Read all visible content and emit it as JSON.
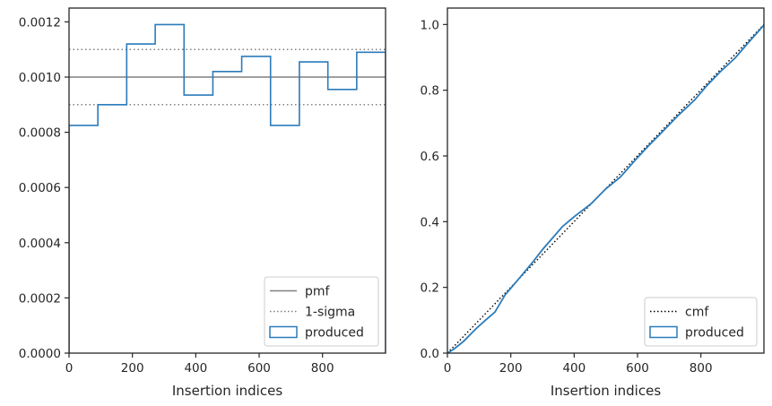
{
  "chart_data": [
    {
      "type": "step",
      "xlabel": "Insertion indices",
      "ylabel": "",
      "xlim": [
        0,
        999
      ],
      "ylim": [
        0,
        0.00125
      ],
      "xticks": [
        0,
        200,
        400,
        600,
        800
      ],
      "xtick_labels": [
        "0",
        "200",
        "400",
        "600",
        "800"
      ],
      "yticks": [
        0,
        0.0002,
        0.0004,
        0.0006,
        0.0008,
        0.001,
        0.0012
      ],
      "ytick_labels": [
        "0.0000",
        "0.0002",
        "0.0004",
        "0.0006",
        "0.0008",
        "0.0010",
        "0.0012"
      ],
      "grid": false,
      "legend_position": "bottom-right",
      "hlines": [
        {
          "name": "pmf",
          "y": 0.001,
          "style": "solid",
          "color": "#808080"
        },
        {
          "name": "1-sigma",
          "y": 0.0011,
          "style": "dotted",
          "color": "#808080"
        },
        {
          "name": "1-sigma",
          "y": 0.0009,
          "style": "dotted",
          "color": "#808080"
        }
      ],
      "series": [
        {
          "name": "produced",
          "color": "#2b7bba",
          "bin_edges": [
            0,
            91,
            182,
            272,
            363,
            454,
            545,
            636,
            727,
            817,
            908,
            999
          ],
          "values": [
            0.000825,
            0.0009,
            0.00112,
            0.00119,
            0.000935,
            0.00102,
            0.001075,
            0.000825,
            0.001055,
            0.000955,
            0.00109
          ]
        }
      ],
      "legend": [
        {
          "label": "pmf",
          "kind": "line-solid",
          "color": "#808080"
        },
        {
          "label": "1-sigma",
          "kind": "line-dotted",
          "color": "#808080"
        },
        {
          "label": "produced",
          "kind": "box",
          "color": "#2b7bba"
        }
      ]
    },
    {
      "type": "line",
      "xlabel": "Insertion indices",
      "ylabel": "",
      "xlim": [
        0,
        999
      ],
      "ylim": [
        0,
        1.05
      ],
      "xticks": [
        0,
        200,
        400,
        600,
        800
      ],
      "xtick_labels": [
        "0",
        "200",
        "400",
        "600",
        "800"
      ],
      "yticks": [
        0,
        0.2,
        0.4,
        0.6,
        0.8,
        1.0
      ],
      "ytick_labels": [
        "0.0",
        "0.2",
        "0.4",
        "0.6",
        "0.8",
        "1.0"
      ],
      "grid": false,
      "legend_position": "bottom-right",
      "series": [
        {
          "name": "cmf",
          "style": "dotted",
          "color": "#000000",
          "x": [
            0,
            999
          ],
          "y": [
            0,
            1.0
          ]
        },
        {
          "name": "produced",
          "style": "solid",
          "color": "#2b7bba",
          "x": [
            0,
            20,
            50,
            91,
            120,
            150,
            182,
            220,
            272,
            300,
            363,
            400,
            454,
            500,
            545,
            600,
            636,
            680,
            727,
            780,
            817,
            860,
            908,
            950,
            999
          ],
          "y": [
            0,
            0.012,
            0.035,
            0.075,
            0.1,
            0.125,
            0.177,
            0.22,
            0.28,
            0.315,
            0.385,
            0.415,
            0.455,
            0.5,
            0.535,
            0.595,
            0.632,
            0.675,
            0.722,
            0.77,
            0.812,
            0.855,
            0.898,
            0.945,
            0.998
          ]
        }
      ],
      "legend": [
        {
          "label": "cmf",
          "kind": "line-dotted",
          "color": "#000000"
        },
        {
          "label": "produced",
          "kind": "box",
          "color": "#2b7bba"
        }
      ]
    }
  ]
}
